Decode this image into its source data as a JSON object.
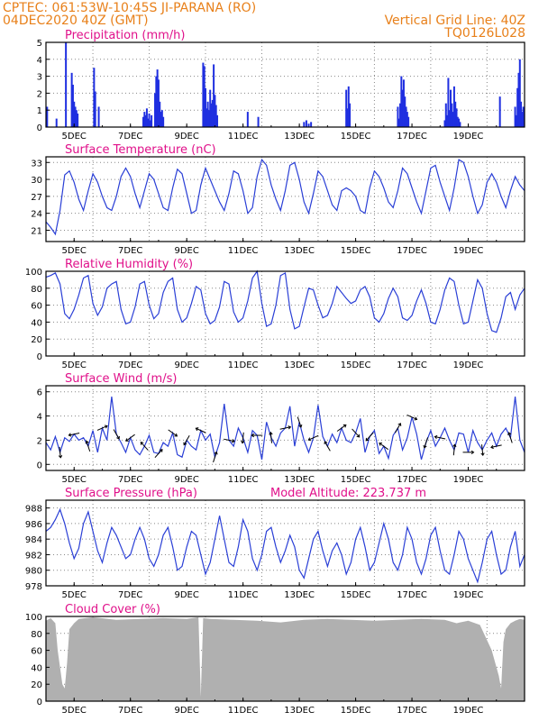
{
  "header": {
    "line1": "CPTEC:   061:53W-10:45S   JI-PARANA (RO)",
    "line2": "04DEC2020 40Z (GMT)",
    "right1": "Vertical Grid Line: 40Z",
    "right2": "TQ0126L028"
  },
  "model_altitude": "Model Altitude: 223.737 m",
  "colors": {
    "line": "#2a3fd6",
    "bar": "#1f2fe0",
    "cloud": "#b0b0b0",
    "title": "#e0108a",
    "header": "#e8801a"
  },
  "chart_data": [
    {
      "type": "bar",
      "title": "Precipitation (mm/h)",
      "ylim": [
        0,
        5
      ],
      "yticks": [
        0,
        1,
        2,
        3,
        4,
        5
      ],
      "xticks": [
        "5DEC",
        "7DEC",
        "9DEC",
        "11DEC",
        "13DEC",
        "15DEC",
        "17DEC",
        "19DEC"
      ],
      "x_unit": "hours since 04DEC2020 00Z",
      "x": [
        1,
        9,
        17,
        22,
        23,
        24,
        25,
        26,
        27,
        41,
        42,
        45,
        83,
        84,
        85,
        86,
        87,
        88,
        89,
        90,
        93,
        94,
        95,
        96,
        97,
        98,
        99,
        100,
        134,
        135,
        136,
        137,
        138,
        139,
        140,
        141,
        142,
        143,
        144,
        145,
        146,
        172,
        181,
        220,
        222,
        224,
        226,
        256,
        257,
        258,
        259,
        300,
        301,
        302,
        303,
        304,
        305,
        306,
        307,
        308,
        309,
        340,
        341,
        342,
        343,
        344,
        345,
        346,
        347,
        348,
        349,
        350,
        351,
        352,
        353,
        387,
        400,
        401,
        402,
        403,
        404,
        405,
        406,
        407
      ],
      "values": [
        1.2,
        0.5,
        5.0,
        3.2,
        2.5,
        1.5,
        1.2,
        1.0,
        0.8,
        3.5,
        2.1,
        1.2,
        0.6,
        0.9,
        0.7,
        1.1,
        0.5,
        0.8,
        0.4,
        0.7,
        2.0,
        3.0,
        3.4,
        2.8,
        1.5,
        0.9,
        1.0,
        0.6,
        3.8,
        3.6,
        2.3,
        1.1,
        1.5,
        1.0,
        2.2,
        1.4,
        1.6,
        3.7,
        1.9,
        1.3,
        0.7,
        0.9,
        0.6,
        0.3,
        0.4,
        0.2,
        0.3,
        2.2,
        1.1,
        2.4,
        1.4,
        1.2,
        0.5,
        1.4,
        3.0,
        2.2,
        2.8,
        1.8,
        1.2,
        0.9,
        0.6,
        0.4,
        1.4,
        0.7,
        2.9,
        1.0,
        2.2,
        1.4,
        0.9,
        2.4,
        1.5,
        1.1,
        0.6,
        0.5,
        0.3,
        1.8,
        1.2,
        0.7,
        2.3,
        3.2,
        4.0,
        1.5,
        0.9,
        1.2
      ]
    },
    {
      "type": "line",
      "title": "Surface Temperature (nC)",
      "ylim": [
        19,
        34
      ],
      "yticks": [
        21,
        24,
        27,
        30,
        33
      ],
      "xticks": [
        "5DEC",
        "7DEC",
        "9DEC",
        "11DEC",
        "13DEC",
        "15DEC",
        "17DEC",
        "19DEC"
      ],
      "x_unit": "hours since 04DEC2020 00Z",
      "x": [
        0,
        4,
        8,
        12,
        16,
        20,
        24,
        28,
        32,
        36,
        40,
        44,
        48,
        52,
        56,
        60,
        64,
        68,
        72,
        76,
        80,
        84,
        88,
        92,
        96,
        100,
        104,
        108,
        112,
        116,
        120,
        124,
        128,
        132,
        136,
        140,
        144,
        148,
        152,
        156,
        160,
        164,
        168,
        172,
        176,
        180,
        184,
        188,
        192,
        196,
        200,
        204,
        208,
        212,
        216,
        220,
        224,
        228,
        232,
        236,
        240,
        244,
        248,
        252,
        256,
        260,
        264,
        268,
        272,
        276,
        280,
        284,
        288,
        292,
        296,
        300,
        304,
        308,
        312,
        316,
        320,
        324,
        328,
        332,
        336,
        340,
        344,
        348,
        352,
        356,
        360,
        364,
        368,
        372,
        376,
        380,
        384,
        388,
        392,
        396,
        400,
        404,
        408
      ],
      "values": [
        22.5,
        21.5,
        20.3,
        24.5,
        30.8,
        31.5,
        29.5,
        26.5,
        24.5,
        28.0,
        31.0,
        29.5,
        27.0,
        25.0,
        24.5,
        27.0,
        30.5,
        32.0,
        30.5,
        27.5,
        25.0,
        28.0,
        31.0,
        30.0,
        27.5,
        25.0,
        24.5,
        28.5,
        31.8,
        31.0,
        27.5,
        24.0,
        24.5,
        29.0,
        32.0,
        30.0,
        28.0,
        26.0,
        24.5,
        27.5,
        31.5,
        31.0,
        28.0,
        24.0,
        25.0,
        30.5,
        33.5,
        32.5,
        29.0,
        26.5,
        24.5,
        28.0,
        32.5,
        33.0,
        30.0,
        26.0,
        24.0,
        27.5,
        31.5,
        30.5,
        28.0,
        25.5,
        24.5,
        28.0,
        28.5,
        28.0,
        27.0,
        24.5,
        24.0,
        28.5,
        31.5,
        30.5,
        28.5,
        26.0,
        25.0,
        28.0,
        32.0,
        31.0,
        28.5,
        26.0,
        24.0,
        28.0,
        32.0,
        32.5,
        29.5,
        27.0,
        24.5,
        28.5,
        33.5,
        33.0,
        30.5,
        27.0,
        24.0,
        25.5,
        29.5,
        31.0,
        29.5,
        27.0,
        25.0,
        28.0,
        30.5,
        29.0,
        28.0
      ]
    },
    {
      "type": "line",
      "title": "Relative Humidity (%)",
      "ylim": [
        0,
        100
      ],
      "yticks": [
        0,
        20,
        40,
        60,
        80,
        100
      ],
      "xticks": [
        "5DEC",
        "7DEC",
        "9DEC",
        "11DEC",
        "13DEC",
        "15DEC",
        "17DEC",
        "19DEC"
      ],
      "x_unit": "hours since 04DEC2020 00Z",
      "x": [
        0,
        4,
        8,
        12,
        16,
        20,
        24,
        28,
        32,
        36,
        40,
        44,
        48,
        52,
        56,
        60,
        64,
        68,
        72,
        76,
        80,
        84,
        88,
        92,
        96,
        100,
        104,
        108,
        112,
        116,
        120,
        124,
        128,
        132,
        136,
        140,
        144,
        148,
        152,
        156,
        160,
        164,
        168,
        172,
        176,
        180,
        184,
        188,
        192,
        196,
        200,
        204,
        208,
        212,
        216,
        220,
        224,
        228,
        232,
        236,
        240,
        244,
        248,
        252,
        256,
        260,
        264,
        268,
        272,
        276,
        280,
        284,
        288,
        292,
        296,
        300,
        304,
        308,
        312,
        316,
        320,
        324,
        328,
        332,
        336,
        340,
        344,
        348,
        352,
        356,
        360,
        364,
        368,
        372,
        376,
        380,
        384,
        388,
        392,
        396,
        400,
        404,
        408
      ],
      "values": [
        93,
        95,
        98,
        85,
        50,
        44,
        55,
        72,
        92,
        95,
        62,
        48,
        58,
        80,
        85,
        88,
        55,
        38,
        40,
        58,
        85,
        88,
        60,
        44,
        50,
        75,
        88,
        92,
        55,
        40,
        45,
        62,
        82,
        78,
        50,
        38,
        42,
        58,
        88,
        85,
        52,
        40,
        45,
        65,
        92,
        100,
        62,
        35,
        38,
        60,
        95,
        98,
        55,
        32,
        35,
        58,
        80,
        78,
        60,
        45,
        48,
        62,
        82,
        75,
        68,
        62,
        65,
        78,
        82,
        70,
        45,
        40,
        50,
        68,
        80,
        70,
        45,
        42,
        48,
        65,
        78,
        62,
        40,
        38,
        55,
        78,
        92,
        88,
        60,
        38,
        40,
        65,
        90,
        80,
        50,
        30,
        28,
        45,
        70,
        75,
        55,
        72,
        80
      ]
    },
    {
      "type": "line",
      "title": "Surface Wind (m/s)",
      "ylim": [
        -0.5,
        6.5
      ],
      "yticks": [
        0,
        2,
        4,
        6
      ],
      "xticks": [
        "5DEC",
        "7DEC",
        "9DEC",
        "11DEC",
        "13DEC",
        "15DEC",
        "17DEC",
        "19DEC"
      ],
      "x_unit": "hours since 04DEC2020 00Z",
      "x": [
        0,
        4,
        8,
        12,
        16,
        20,
        24,
        28,
        32,
        36,
        40,
        44,
        48,
        52,
        56,
        60,
        64,
        68,
        72,
        76,
        80,
        84,
        88,
        92,
        96,
        100,
        104,
        108,
        112,
        116,
        120,
        124,
        128,
        132,
        136,
        140,
        144,
        148,
        152,
        156,
        160,
        164,
        168,
        172,
        176,
        180,
        184,
        188,
        192,
        196,
        200,
        204,
        208,
        212,
        216,
        220,
        224,
        228,
        232,
        236,
        240,
        244,
        248,
        252,
        256,
        260,
        264,
        268,
        272,
        276,
        280,
        284,
        288,
        292,
        296,
        300,
        304,
        308,
        312,
        316,
        320,
        324,
        328,
        332,
        336,
        340,
        344,
        348,
        352,
        356,
        360,
        364,
        368,
        372,
        376,
        380,
        384,
        388,
        392,
        396,
        400,
        404,
        408
      ],
      "values": [
        1.8,
        1.2,
        2.3,
        1.0,
        2.2,
        1.9,
        2.5,
        2.0,
        2.2,
        1.5,
        2.8,
        1.0,
        3.0,
        2.0,
        5.6,
        2.5,
        1.8,
        1.0,
        2.2,
        1.2,
        0.8,
        1.5,
        2.4,
        1.0,
        0.9,
        1.8,
        1.5,
        2.6,
        0.8,
        0.6,
        2.0,
        1.5,
        1.2,
        2.8,
        2.0,
        2.5,
        0.6,
        1.8,
        5.0,
        2.0,
        1.5,
        3.0,
        2.2,
        1.0,
        2.8,
        2.4,
        0.4,
        3.5,
        2.2,
        1.5,
        2.6,
        3.0,
        4.8,
        1.5,
        3.5,
        2.0,
        1.0,
        2.2,
        4.9,
        2.3,
        1.5,
        2.5,
        1.8,
        3.0,
        2.0,
        1.8,
        2.6,
        3.8,
        1.0,
        2.3,
        2.8,
        0.9,
        1.5,
        0.5,
        2.4,
        3.0,
        1.2,
        2.2,
        3.9,
        2.5,
        0.4,
        1.8,
        2.8,
        1.5,
        2.2,
        3.0,
        2.0,
        1.2,
        2.6,
        2.5,
        1.0,
        2.8,
        1.8,
        1.2,
        2.0,
        2.6,
        1.5,
        2.5,
        3.0,
        2.2,
        5.6,
        2.0,
        1.0
      ]
    },
    {
      "type": "line",
      "title": "Surface Pressure (hPa)",
      "ylim": [
        978,
        989
      ],
      "yticks": [
        978,
        980,
        982,
        984,
        986,
        988
      ],
      "xticks": [
        "5DEC",
        "7DEC",
        "9DEC",
        "11DEC",
        "13DEC",
        "15DEC",
        "17DEC",
        "19DEC"
      ],
      "x_unit": "hours since 04DEC2020 00Z",
      "x": [
        0,
        4,
        8,
        12,
        16,
        20,
        24,
        28,
        32,
        36,
        40,
        44,
        48,
        52,
        56,
        60,
        64,
        68,
        72,
        76,
        80,
        84,
        88,
        92,
        96,
        100,
        104,
        108,
        112,
        116,
        120,
        124,
        128,
        132,
        136,
        140,
        144,
        148,
        152,
        156,
        160,
        164,
        168,
        172,
        176,
        180,
        184,
        188,
        192,
        196,
        200,
        204,
        208,
        212,
        216,
        220,
        224,
        228,
        232,
        236,
        240,
        244,
        248,
        252,
        256,
        260,
        264,
        268,
        272,
        276,
        280,
        284,
        288,
        292,
        296,
        300,
        304,
        308,
        312,
        316,
        320,
        324,
        328,
        332,
        336,
        340,
        344,
        348,
        352,
        356,
        360,
        364,
        368,
        372,
        376,
        380,
        384,
        388,
        392,
        396,
        400,
        404,
        408
      ],
      "values": [
        985.0,
        985.5,
        986.5,
        987.8,
        986.0,
        983.5,
        981.5,
        982.8,
        986.0,
        987.5,
        985.0,
        982.5,
        981.0,
        983.5,
        985.5,
        984.5,
        983.0,
        981.5,
        982.0,
        984.0,
        985.5,
        984.0,
        981.5,
        980.5,
        982.0,
        984.5,
        985.5,
        983.0,
        980.0,
        980.5,
        983.0,
        985.0,
        984.5,
        982.0,
        979.5,
        981.0,
        984.0,
        987.0,
        984.0,
        981.0,
        980.5,
        983.0,
        986.5,
        985.0,
        981.5,
        980.0,
        982.0,
        985.0,
        985.5,
        983.0,
        981.0,
        982.5,
        984.5,
        983.0,
        980.0,
        979.0,
        981.5,
        984.0,
        985.0,
        982.5,
        980.5,
        982.5,
        983.5,
        982.0,
        979.5,
        981.0,
        984.0,
        985.5,
        983.0,
        980.0,
        981.0,
        983.5,
        986.0,
        984.0,
        981.0,
        980.0,
        982.0,
        985.5,
        984.0,
        981.0,
        979.5,
        981.5,
        984.5,
        985.5,
        982.5,
        980.0,
        979.5,
        982.0,
        985.0,
        984.0,
        981.5,
        980.0,
        978.5,
        981.0,
        984.0,
        985.0,
        982.0,
        979.5,
        980.0,
        983.0,
        985.0,
        980.5,
        982.0
      ]
    },
    {
      "type": "area",
      "title": "Cloud Cover (%)",
      "ylim": [
        0,
        100
      ],
      "yticks": [
        0,
        20,
        40,
        60,
        80,
        100
      ],
      "xticks": [
        "5DEC",
        "7DEC",
        "9DEC",
        "11DEC",
        "13DEC",
        "15DEC",
        "17DEC",
        "19DEC"
      ],
      "x_unit": "hours since 04DEC2020 00Z",
      "x": [
        0,
        4,
        8,
        10,
        12,
        14,
        16,
        18,
        20,
        24,
        28,
        40,
        60,
        80,
        100,
        120,
        130,
        132,
        134,
        140,
        160,
        180,
        200,
        220,
        240,
        260,
        280,
        300,
        320,
        340,
        350,
        360,
        370,
        380,
        386,
        388,
        390,
        392,
        396,
        400,
        404,
        408
      ],
      "values": [
        95,
        98,
        92,
        60,
        40,
        20,
        15,
        45,
        85,
        92,
        97,
        99,
        96,
        97,
        98,
        97,
        99,
        5,
        98,
        97,
        96,
        95,
        93,
        96,
        97,
        96,
        95,
        96,
        97,
        96,
        92,
        95,
        90,
        60,
        30,
        15,
        70,
        85,
        92,
        95,
        97,
        96
      ]
    }
  ]
}
